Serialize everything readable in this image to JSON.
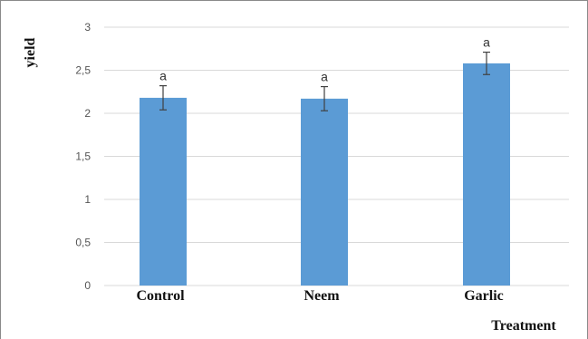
{
  "chart_data": {
    "type": "bar",
    "categories": [
      "Control",
      "Neem",
      "Garlic"
    ],
    "values": [
      2.18,
      2.17,
      2.58
    ],
    "errors": [
      0.14,
      0.14,
      0.13
    ],
    "significance_letters": [
      "a",
      "a",
      "a"
    ],
    "xlabel": "Treatment",
    "ylabel": "yield",
    "ylim": [
      0,
      3
    ],
    "yticks": [
      "0",
      "0,5",
      "1",
      "1,5",
      "2",
      "2,5",
      "3"
    ],
    "grid": "horizontal",
    "legend": "none",
    "colors": {
      "bar": "#5b9bd5",
      "grid": "#d9d9d9",
      "error_bar": "#404040"
    }
  }
}
